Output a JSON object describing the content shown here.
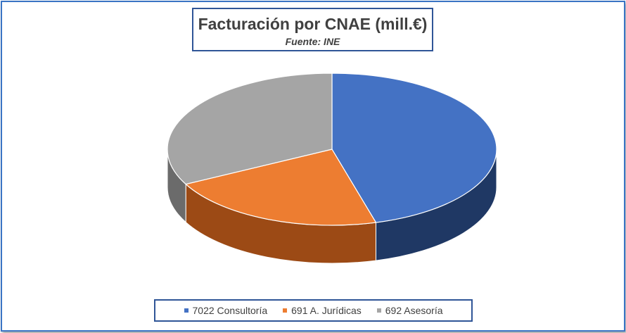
{
  "chart_data": {
    "type": "pie",
    "title": "Facturación por CNAE (mill.€)",
    "subtitle": "Fuente: INE",
    "style": "3d",
    "legend_position": "bottom",
    "categories": [
      "7022 Consultoría",
      "691 A. Jurídicas",
      "692 Asesoría"
    ],
    "values": [
      45.7,
      21.7,
      32.6
    ],
    "colors": [
      "#4472c4",
      "#ed7d31",
      "#a5a5a5"
    ],
    "side_colors": [
      "#1f3864",
      "#9c4a15",
      "#6b6b6b"
    ]
  }
}
